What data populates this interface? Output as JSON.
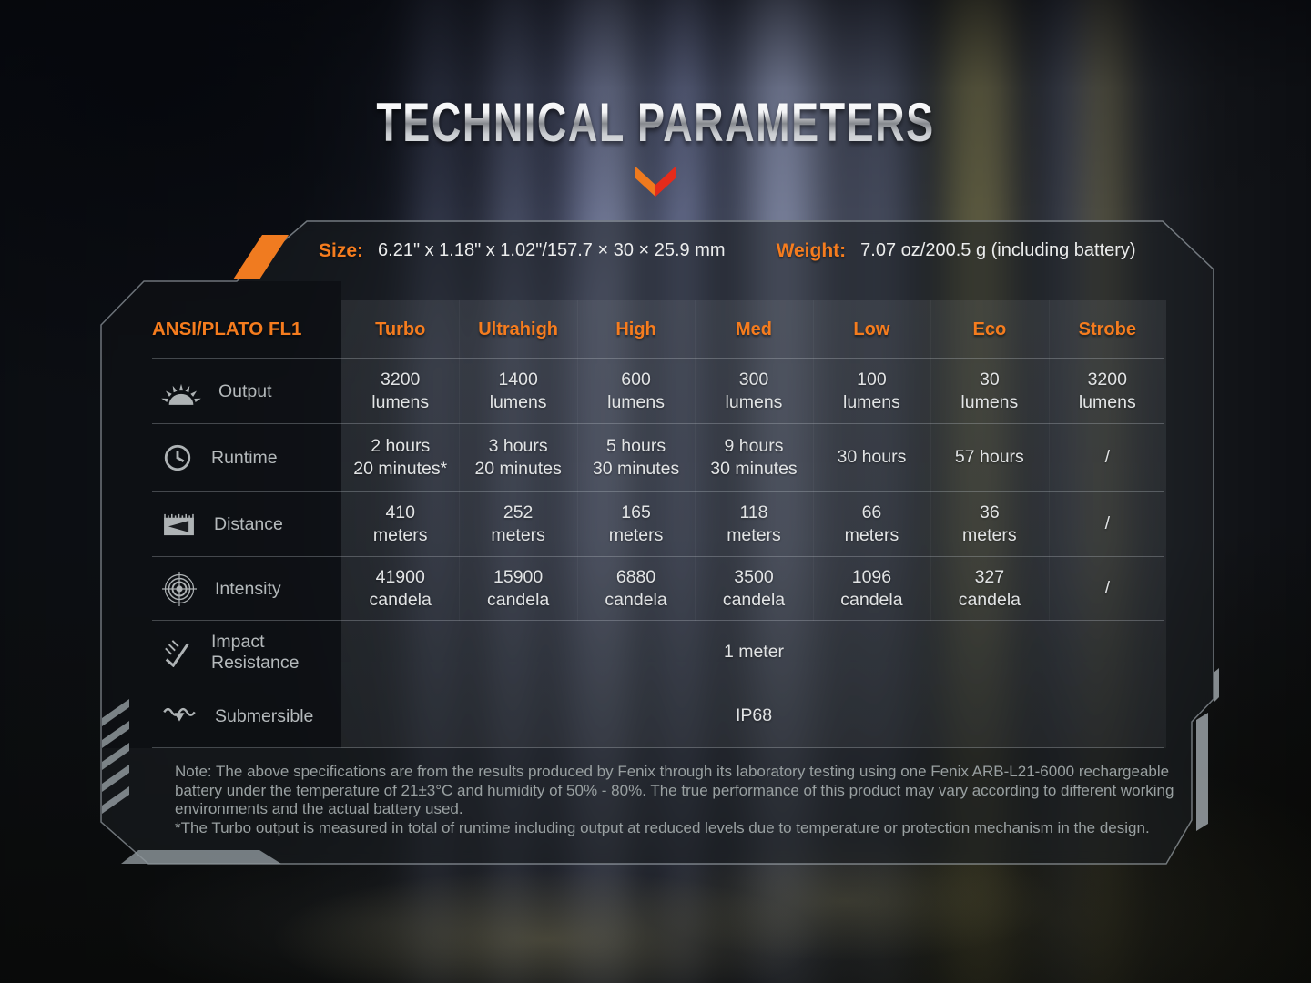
{
  "title": "TECHNICAL PARAMETERS",
  "header": {
    "size_label": "Size:",
    "size_value": "6.21\" x 1.18\" x 1.02\"/157.7 × 30 × 25.9 mm",
    "weight_label": "Weight:",
    "weight_value": "7.07 oz/200.5 g (including battery)"
  },
  "table": {
    "corner_label": "ANSI/PLATO FL1",
    "modes": [
      "Turbo",
      "Ultrahigh",
      "High",
      "Med",
      "Low",
      "Eco",
      "Strobe"
    ],
    "rows": [
      {
        "label": "Output",
        "icon": "output-sun-icon",
        "values": [
          [
            "3200",
            "lumens"
          ],
          [
            "1400",
            "lumens"
          ],
          [
            "600",
            "lumens"
          ],
          [
            "300",
            "lumens"
          ],
          [
            "100",
            "lumens"
          ],
          [
            "30",
            "lumens"
          ],
          [
            "3200",
            "lumens"
          ]
        ]
      },
      {
        "label": "Runtime",
        "icon": "runtime-clock-icon",
        "values": [
          [
            "2 hours",
            "20 minutes*"
          ],
          [
            "3 hours",
            "20 minutes"
          ],
          [
            "5 hours",
            "30 minutes"
          ],
          [
            "9 hours",
            "30 minutes"
          ],
          [
            "30 hours"
          ],
          [
            "57 hours"
          ],
          [
            "/"
          ]
        ]
      },
      {
        "label": "Distance",
        "icon": "distance-beam-icon",
        "values": [
          [
            "410",
            "meters"
          ],
          [
            "252",
            "meters"
          ],
          [
            "165",
            "meters"
          ],
          [
            "118",
            "meters"
          ],
          [
            "66",
            "meters"
          ],
          [
            "36",
            "meters"
          ],
          [
            "/"
          ]
        ]
      },
      {
        "label": "Intensity",
        "icon": "intensity-target-icon",
        "values": [
          [
            "41900",
            "candela"
          ],
          [
            "15900",
            "candela"
          ],
          [
            "6880",
            "candela"
          ],
          [
            "3500",
            "candela"
          ],
          [
            "1096",
            "candela"
          ],
          [
            "327",
            "candela"
          ],
          [
            "/"
          ]
        ]
      },
      {
        "label": "Impact Resistance",
        "icon": "impact-resistance-icon",
        "span_value": "1 meter"
      },
      {
        "label": "Submersible",
        "icon": "submersible-water-icon",
        "span_value": "IP68"
      }
    ]
  },
  "notes": {
    "lines": [
      "Note: The above specifications are from the results produced by Fenix through its laboratory testing using one Fenix ARB-L21-6000 rechargeable",
      "battery under the temperature of 21±3°C and humidity of 50% - 80%. The true performance of this product may vary according to different working",
      "environments and the actual battery used.",
      "*The Turbo output is measured in total of runtime including output at reduced levels due to temperature or protection mechanism in the design."
    ]
  },
  "colors": {
    "accent_orange": "#f57c1e",
    "chevron_red": "#e42b1b",
    "value_text": "#e2e4e5",
    "label_text": "#b5babc",
    "note_text": "#99a0a1"
  }
}
